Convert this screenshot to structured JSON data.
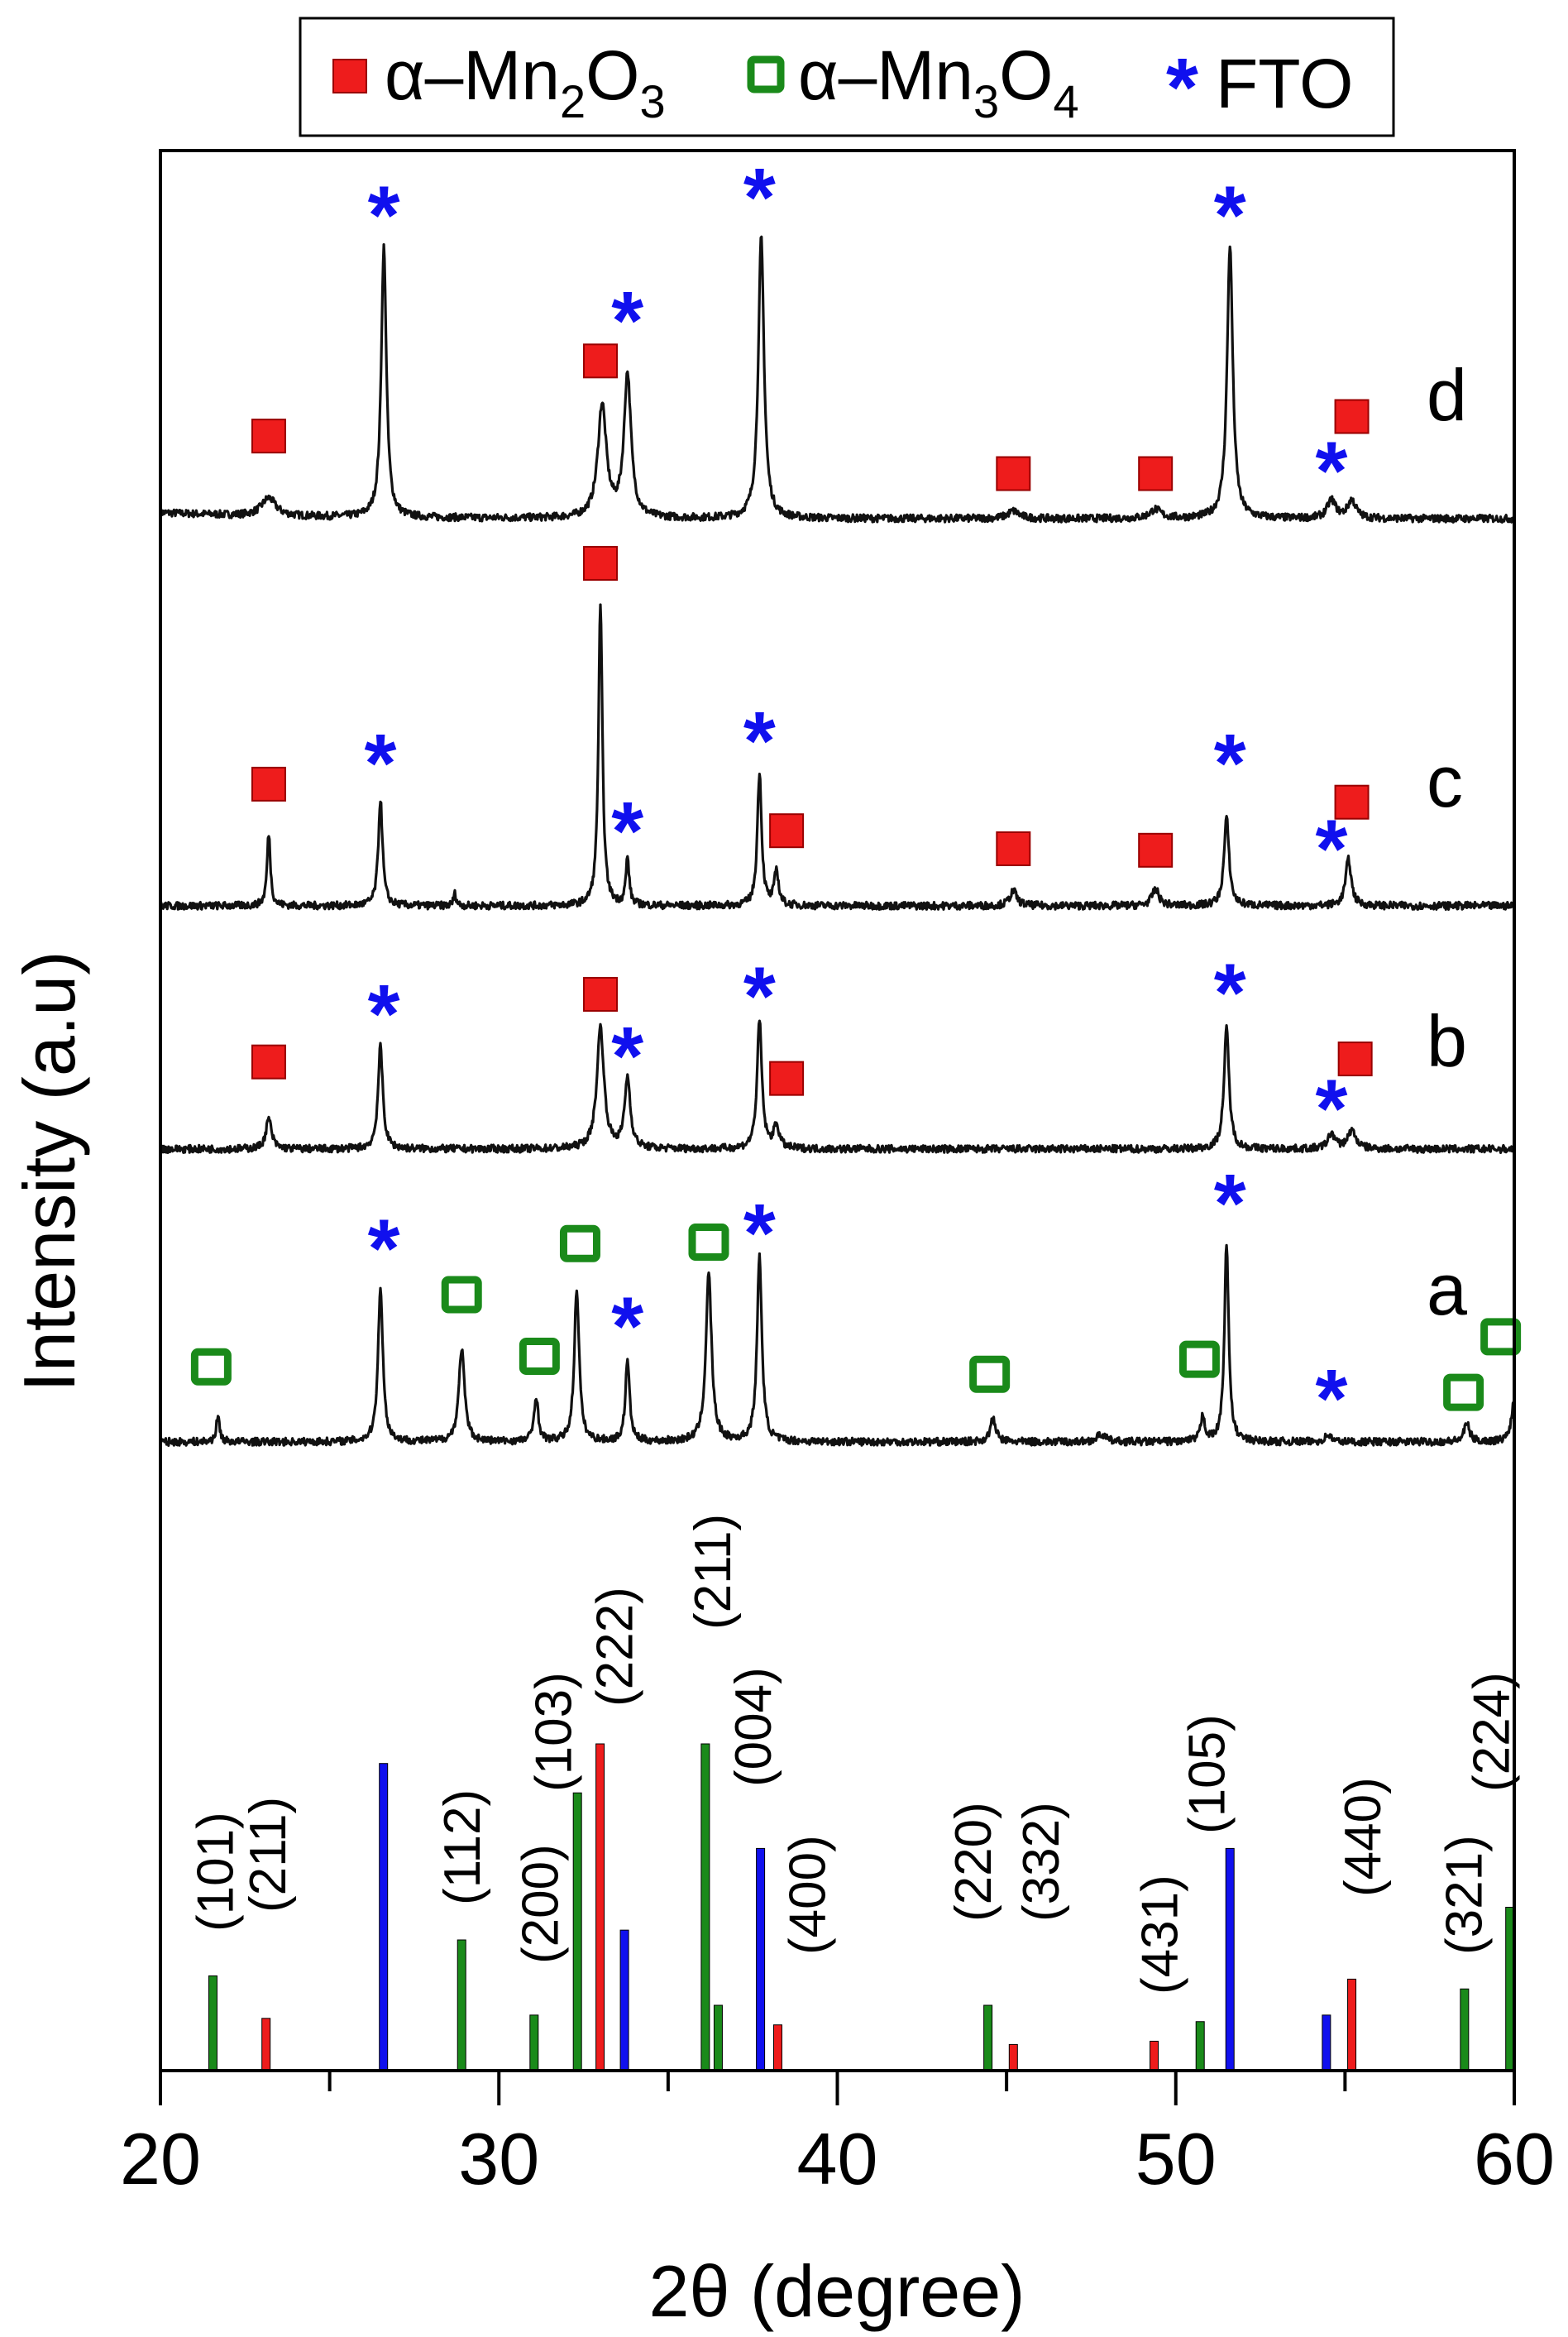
{
  "chart_data": {
    "type": "line",
    "title": "",
    "xlabel": "2θ (degree)",
    "ylabel": "Intensity (a.u)",
    "xlim": [
      20,
      60
    ],
    "xticks": [
      "20",
      "30",
      "40",
      "50",
      "60"
    ],
    "xtick_values": [
      20,
      30,
      40,
      50,
      60
    ],
    "grid": false,
    "legend": {
      "placement": "top-center",
      "entries": [
        {
          "marker": "filled-square",
          "color": "#ee1c1c",
          "prefix": "α–Mn",
          "sub1": "2",
          "mid": "O",
          "sub2": "3"
        },
        {
          "marker": "open-square",
          "color": "#1a8a1a",
          "prefix": "α–Mn",
          "sub1": "3",
          "mid": "O",
          "sub2": "4"
        },
        {
          "marker": "star",
          "color": "#1010ee",
          "label": "FTO",
          "symbol": "*"
        }
      ]
    },
    "colors": {
      "mn2o3": "#ee1c1c",
      "mn3o4": "#1a8a1a",
      "fto": "#1010ee",
      "trace": "#111111"
    },
    "series": [
      {
        "name": "d",
        "peaks": [
          [
            23.2,
            12,
            0.5
          ],
          [
            26.6,
            180,
            0.18
          ],
          [
            33.05,
            75,
            0.3
          ],
          [
            33.8,
            95,
            0.25
          ],
          [
            37.75,
            187,
            0.2
          ],
          [
            45.2,
            5,
            0.4
          ],
          [
            49.4,
            6,
            0.4
          ],
          [
            51.6,
            182,
            0.2
          ],
          [
            54.6,
            12,
            0.3
          ],
          [
            55.2,
            12,
            0.3
          ]
        ],
        "markers": [
          [
            "sq",
            23.2,
            55
          ],
          [
            "star",
            26.6,
            205
          ],
          [
            "sq",
            33.0,
            105
          ],
          [
            "star",
            33.8,
            135
          ],
          [
            "star",
            37.7,
            217
          ],
          [
            "sq",
            45.2,
            30
          ],
          [
            "sq",
            49.4,
            30
          ],
          [
            "star",
            51.6,
            205
          ],
          [
            "star",
            54.6,
            35
          ],
          [
            "sq",
            55.2,
            68
          ]
        ]
      },
      {
        "name": "c",
        "peaks": [
          [
            23.2,
            48,
            0.12
          ],
          [
            26.5,
            71,
            0.15
          ],
          [
            28.7,
            8,
            0.1
          ],
          [
            33.0,
            200,
            0.14
          ],
          [
            33.8,
            31,
            0.12
          ],
          [
            37.7,
            89,
            0.15
          ],
          [
            38.2,
            23,
            0.15
          ],
          [
            45.2,
            10,
            0.25
          ],
          [
            49.4,
            11,
            0.25
          ],
          [
            51.5,
            58,
            0.18
          ],
          [
            55.1,
            31,
            0.2
          ]
        ],
        "markers": [
          [
            "sq",
            23.2,
            81
          ],
          [
            "star",
            26.5,
            98
          ],
          [
            "sq",
            33.0,
            228
          ],
          [
            "star",
            33.8,
            53
          ],
          [
            "star",
            37.7,
            113
          ],
          [
            "sq",
            38.5,
            50
          ],
          [
            "sq",
            45.2,
            38
          ],
          [
            "sq",
            49.4,
            37
          ],
          [
            "star",
            51.6,
            98
          ],
          [
            "star",
            54.6,
            41
          ],
          [
            "sq",
            55.2,
            69
          ]
        ]
      },
      {
        "name": "b",
        "peaks": [
          [
            23.2,
            20,
            0.2
          ],
          [
            26.5,
            68,
            0.17
          ],
          [
            33.0,
            81,
            0.25
          ],
          [
            33.8,
            47,
            0.2
          ],
          [
            37.7,
            85,
            0.17
          ],
          [
            38.2,
            15,
            0.2
          ],
          [
            51.5,
            80,
            0.18
          ],
          [
            54.6,
            10,
            0.25
          ],
          [
            55.2,
            12,
            0.3
          ]
        ],
        "markers": [
          [
            "sq",
            23.2,
            58
          ],
          [
            "star",
            26.6,
            93
          ],
          [
            "sq",
            33.0,
            103
          ],
          [
            "star",
            33.8,
            65
          ],
          [
            "star",
            37.7,
            105
          ],
          [
            "sq",
            38.5,
            47
          ],
          [
            "star",
            51.6,
            107
          ],
          [
            "star",
            54.6,
            30
          ],
          [
            "sq",
            55.3,
            60
          ]
        ]
      },
      {
        "name": "a",
        "peaks": [
          [
            21.7,
            17,
            0.12
          ],
          [
            26.5,
            103,
            0.17
          ],
          [
            28.9,
            62,
            0.2
          ],
          [
            31.1,
            30,
            0.15
          ],
          [
            32.3,
            102,
            0.17
          ],
          [
            33.8,
            54,
            0.15
          ],
          [
            36.2,
            112,
            0.2
          ],
          [
            37.7,
            123,
            0.17
          ],
          [
            44.6,
            15,
            0.2
          ],
          [
            47.8,
            5,
            0.3
          ],
          [
            50.8,
            17,
            0.15
          ],
          [
            51.5,
            132,
            0.15
          ],
          [
            54.5,
            5,
            0.2
          ],
          [
            58.6,
            12,
            0.2
          ],
          [
            60.0,
            28,
            0.2
          ]
        ],
        "markers": [
          [
            "open",
            21.5,
            50
          ],
          [
            "star",
            26.6,
            132
          ],
          [
            "open",
            28.9,
            98
          ],
          [
            "open",
            31.2,
            57
          ],
          [
            "open",
            32.4,
            132
          ],
          [
            "star",
            33.8,
            80
          ],
          [
            "open",
            36.2,
            133
          ],
          [
            "star",
            37.7,
            142
          ],
          [
            "open",
            44.5,
            45
          ],
          [
            "open",
            50.7,
            55
          ],
          [
            "star",
            51.6,
            162
          ],
          [
            "star",
            54.6,
            32
          ],
          [
            "open",
            58.5,
            33
          ],
          [
            "open",
            59.6,
            70
          ]
        ]
      }
    ],
    "reference_bars": [
      {
        "x": 21.55,
        "h": 29,
        "phase": "mn3o4"
      },
      {
        "x": 23.12,
        "h": 16,
        "phase": "mn2o3"
      },
      {
        "x": 26.59,
        "h": 94,
        "phase": "fto"
      },
      {
        "x": 28.9,
        "h": 40,
        "phase": "mn3o4"
      },
      {
        "x": 31.04,
        "h": 17,
        "phase": "mn3o4"
      },
      {
        "x": 32.32,
        "h": 85,
        "phase": "mn3o4"
      },
      {
        "x": 32.99,
        "h": 100,
        "phase": "mn2o3"
      },
      {
        "x": 33.71,
        "h": 43,
        "phase": "fto"
      },
      {
        "x": 36.1,
        "h": 100,
        "phase": "mn3o4"
      },
      {
        "x": 36.48,
        "h": 20,
        "phase": "mn3o4"
      },
      {
        "x": 37.73,
        "h": 68,
        "phase": "fto"
      },
      {
        "x": 38.24,
        "h": 14,
        "phase": "mn2o3"
      },
      {
        "x": 44.45,
        "h": 20,
        "phase": "mn3o4"
      },
      {
        "x": 45.2,
        "h": 8,
        "phase": "mn2o3"
      },
      {
        "x": 49.36,
        "h": 9,
        "phase": "mn2o3"
      },
      {
        "x": 50.72,
        "h": 15,
        "phase": "mn3o4"
      },
      {
        "x": 51.6,
        "h": 68,
        "phase": "fto"
      },
      {
        "x": 54.45,
        "h": 17,
        "phase": "fto"
      },
      {
        "x": 55.2,
        "h": 28,
        "phase": "mn2o3"
      },
      {
        "x": 58.53,
        "h": 25,
        "phase": "mn3o4"
      },
      {
        "x": 59.87,
        "h": 50,
        "phase": "mn3o4"
      }
    ],
    "reference_labels": [
      {
        "text": "(101)",
        "x": 21.6
      },
      {
        "text": "(211)",
        "x": 23.15
      },
      {
        "text": "(112)",
        "x": 28.9
      },
      {
        "text": "(200)",
        "x": 31.2
      },
      {
        "text": "(103)",
        "x": 31.6
      },
      {
        "text": "(222)",
        "x": 33.4
      },
      {
        "text": "(211)",
        "x": 36.3
      },
      {
        "text": "(004)",
        "x": 37.5
      },
      {
        "text": "(400)",
        "x": 39.1
      },
      {
        "text": "(220)",
        "x": 44.0
      },
      {
        "text": "(332)",
        "x": 46.0
      },
      {
        "text": "(431)",
        "x": 49.5
      },
      {
        "text": "(105)",
        "x": 50.9
      },
      {
        "text": "(440)",
        "x": 55.5
      },
      {
        "text": "(321)",
        "x": 58.5
      },
      {
        "text": "(224)",
        "x": 59.3
      }
    ]
  }
}
